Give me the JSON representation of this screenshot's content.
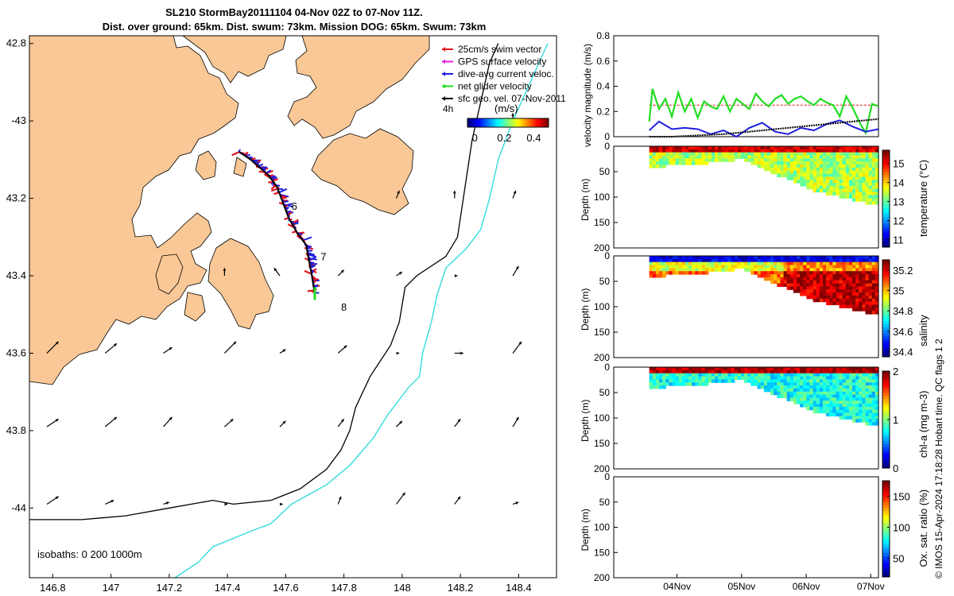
{
  "title": {
    "line1": "SL210 StormBay20111104 04-Nov 02Z to 07-Nov 11Z.",
    "line2": "Dist. over ground: 65km. Dist. swum: 73km. Mission DOG: 65km. Swum: 73km"
  },
  "credit": "© IMOS 15-Apr-2024 17:18:28 Hobart time. QC flags 1  2",
  "colors": {
    "land": "#F9C896",
    "swim_vector": "#E5141E",
    "gps_velocity": "#E020E0",
    "dive_avg": "#1F1FDD",
    "net_glider": "#22DD22",
    "sfc_geo": "#000000",
    "isobath_200": "#000000",
    "isobath_1000": "#33DDDD",
    "speed_ref": "#E03030"
  },
  "chart_data": [
    {
      "type": "map",
      "id": "map",
      "xlabel": "",
      "ylabel": "",
      "xlim": [
        146.72,
        148.53
      ],
      "ylim": [
        -44.18,
        -42.78
      ],
      "x_ticks": [
        146.8,
        147.0,
        147.2,
        147.4,
        147.6,
        147.8,
        148.0,
        148.2,
        148.4
      ],
      "x_tick_labels": [
        "146.8",
        "147",
        "147.2",
        "147.4",
        "147.6",
        "147.8",
        "148",
        "148.2",
        "148.4"
      ],
      "y_ticks": [
        -42.8,
        -43.0,
        -43.2,
        -43.4,
        -43.6,
        -43.8,
        -44.0
      ],
      "y_tick_labels": [
        "42.8",
        "-43",
        "43.2",
        "43.4",
        "43.6",
        "43.8",
        "-44"
      ],
      "legend": [
        {
          "label": "25cm/s swim vector",
          "color_key": "swim_vector"
        },
        {
          "label": "GPS surface velocity",
          "color_key": "gps_velocity"
        },
        {
          "label": "dive-avg current veloc.",
          "color_key": "dive_avg"
        },
        {
          "label": "net glider velocity",
          "color_key": "net_glider"
        },
        {
          "label": "sfc geo. vel. 07-Nov-2011",
          "color_key": "sfc_geo"
        }
      ],
      "speed_colorbar": {
        "label": "(m/s)",
        "ticks": [
          0,
          0.2,
          0.4
        ],
        "range": [
          -0.05,
          0.5
        ]
      },
      "time_marker_label": "4h",
      "day_labels": [
        {
          "text": "6",
          "lon": 147.62,
          "lat": -43.23
        },
        {
          "text": "7",
          "lon": 147.72,
          "lat": -43.36
        },
        {
          "text": "8",
          "lon": 147.79,
          "lat": -43.49
        }
      ],
      "isobath_label": "isobaths: 0   200  1000m",
      "glider_track": [
        [
          147.44,
          -43.08
        ],
        [
          147.48,
          -43.1
        ],
        [
          147.51,
          -43.12
        ],
        [
          147.54,
          -43.14
        ],
        [
          147.57,
          -43.17
        ],
        [
          147.59,
          -43.21
        ],
        [
          147.61,
          -43.25
        ],
        [
          147.64,
          -43.29
        ],
        [
          147.67,
          -43.32
        ],
        [
          147.68,
          -43.36
        ],
        [
          147.69,
          -43.4
        ],
        [
          147.7,
          -43.45
        ]
      ],
      "isobath_200": [
        [
          148.33,
          -42.8
        ],
        [
          148.3,
          -42.85
        ],
        [
          148.27,
          -42.95
        ],
        [
          148.24,
          -43.05
        ],
        [
          148.21,
          -43.2
        ],
        [
          148.19,
          -43.3
        ],
        [
          148.15,
          -43.35
        ],
        [
          148.05,
          -43.4
        ],
        [
          148.01,
          -43.43
        ],
        [
          147.99,
          -43.52
        ],
        [
          147.96,
          -43.58
        ],
        [
          147.89,
          -43.66
        ],
        [
          147.84,
          -43.74
        ],
        [
          147.82,
          -43.8
        ],
        [
          147.79,
          -43.85
        ],
        [
          147.74,
          -43.9
        ],
        [
          147.65,
          -43.95
        ],
        [
          147.55,
          -43.98
        ],
        [
          147.42,
          -43.99
        ],
        [
          147.35,
          -43.98
        ],
        [
          147.2,
          -44.0
        ],
        [
          147.05,
          -44.02
        ],
        [
          146.9,
          -44.03
        ],
        [
          146.72,
          -44.03
        ]
      ],
      "isobath_1000": [
        [
          148.5,
          -42.8
        ],
        [
          148.44,
          -42.9
        ],
        [
          148.38,
          -43.0
        ],
        [
          148.33,
          -43.1
        ],
        [
          148.3,
          -43.2
        ],
        [
          148.27,
          -43.28
        ],
        [
          148.22,
          -43.33
        ],
        [
          148.15,
          -43.38
        ],
        [
          148.12,
          -43.45
        ],
        [
          148.1,
          -43.52
        ],
        [
          148.07,
          -43.6
        ],
        [
          148.06,
          -43.66
        ],
        [
          148.02,
          -43.69
        ],
        [
          147.95,
          -43.76
        ],
        [
          147.9,
          -43.82
        ],
        [
          147.82,
          -43.89
        ],
        [
          147.74,
          -43.94
        ],
        [
          147.62,
          -43.99
        ],
        [
          147.55,
          -44.04
        ],
        [
          147.48,
          -44.06
        ],
        [
          147.35,
          -44.1
        ],
        [
          147.3,
          -44.14
        ],
        [
          147.22,
          -44.18
        ]
      ],
      "sfc_arrows": [
        [
          146.78,
          -43.6,
          0.04,
          0.03
        ],
        [
          146.98,
          -43.6,
          0.04,
          0.025
        ],
        [
          147.18,
          -43.6,
          0.03,
          0.015
        ],
        [
          147.39,
          -43.6,
          0.04,
          0.03
        ],
        [
          147.58,
          -43.6,
          0.02,
          0.01
        ],
        [
          147.78,
          -43.6,
          0.03,
          0.02
        ],
        [
          147.98,
          -43.6,
          0.01,
          0.0
        ],
        [
          148.18,
          -43.6,
          0.03,
          0.0
        ],
        [
          148.38,
          -43.6,
          0.03,
          0.03
        ],
        [
          146.78,
          -43.79,
          0.04,
          0.02
        ],
        [
          146.98,
          -43.79,
          0.04,
          0.025
        ],
        [
          147.18,
          -43.79,
          0.03,
          0.025
        ],
        [
          147.39,
          -43.79,
          0.03,
          0.02
        ],
        [
          147.58,
          -43.79,
          0.02,
          0.015
        ],
        [
          147.78,
          -43.79,
          0.02,
          0.02
        ],
        [
          147.98,
          -43.79,
          0.02,
          0.015
        ],
        [
          148.18,
          -43.79,
          0.02,
          0.02
        ],
        [
          148.38,
          -43.79,
          0.02,
          0.025
        ],
        [
          146.78,
          -43.99,
          0.04,
          0.02
        ],
        [
          146.98,
          -43.99,
          0.03,
          0.01
        ],
        [
          147.18,
          -43.99,
          0.02,
          0.005
        ],
        [
          147.39,
          -43.99,
          0.01,
          0.0
        ],
        [
          147.58,
          -43.99,
          0.01,
          0.0
        ],
        [
          147.78,
          -43.99,
          0.01,
          0.02
        ],
        [
          147.98,
          -43.99,
          0.03,
          0.03
        ],
        [
          148.18,
          -43.99,
          0.02,
          0.02
        ],
        [
          148.38,
          -43.99,
          0.02,
          0.005
        ],
        [
          147.39,
          -43.4,
          0.0,
          0.02
        ],
        [
          147.58,
          -43.4,
          -0.02,
          0.02
        ],
        [
          147.78,
          -43.4,
          0.02,
          0.015
        ],
        [
          147.98,
          -43.4,
          0.02,
          0.01
        ],
        [
          148.18,
          -43.4,
          0.01,
          0.0
        ],
        [
          148.38,
          -43.4,
          0.02,
          0.025
        ],
        [
          147.98,
          -43.2,
          0.01,
          0.02
        ],
        [
          148.18,
          -43.2,
          0.0,
          0.02
        ],
        [
          148.38,
          -43.2,
          0.01,
          0.02
        ],
        [
          148.38,
          -43.0,
          0.0,
          0.02
        ]
      ]
    },
    {
      "type": "line",
      "id": "velocity",
      "ylabel": "velocity magnitude (m/s)",
      "xlim": [
        0,
        4.1
      ],
      "ylim": [
        0,
        0.8
      ],
      "y_ticks": [
        0,
        0.2,
        0.4,
        0.6,
        0.8
      ],
      "y_tick_labels": [
        "0",
        "0.2",
        "0.4",
        "0.6",
        "0.8"
      ],
      "series": [
        {
          "name": "25cm/s swim vector",
          "color_key": "speed_ref",
          "x": [
            0.55,
            4.1
          ],
          "values": [
            0.25,
            0.25
          ]
        },
        {
          "name": "net glider velocity",
          "color_key": "net_glider",
          "x": [
            0.55,
            0.6,
            0.7,
            0.8,
            0.9,
            1.0,
            1.1,
            1.2,
            1.3,
            1.4,
            1.5,
            1.6,
            1.7,
            1.8,
            1.9,
            2.0,
            2.1,
            2.2,
            2.3,
            2.4,
            2.5,
            2.6,
            2.7,
            2.8,
            2.9,
            3.0,
            3.1,
            3.2,
            3.3,
            3.4,
            3.5,
            3.6,
            3.7,
            3.8,
            3.9,
            4.0,
            4.1
          ],
          "values": [
            0.12,
            0.38,
            0.22,
            0.3,
            0.16,
            0.35,
            0.2,
            0.3,
            0.15,
            0.28,
            0.24,
            0.22,
            0.32,
            0.2,
            0.3,
            0.26,
            0.22,
            0.34,
            0.28,
            0.24,
            0.3,
            0.33,
            0.26,
            0.3,
            0.32,
            0.28,
            0.25,
            0.3,
            0.27,
            0.25,
            0.16,
            0.32,
            0.23,
            0.12,
            0.03,
            0.26,
            0.24
          ]
        },
        {
          "name": "dive-avg current veloc.",
          "color_key": "dive_avg",
          "x": [
            0.55,
            0.7,
            0.9,
            1.1,
            1.3,
            1.5,
            1.7,
            1.9,
            2.1,
            2.3,
            2.5,
            2.7,
            2.9,
            3.1,
            3.3,
            3.5,
            3.7,
            3.9,
            4.1
          ],
          "values": [
            0.05,
            0.12,
            0.06,
            0.07,
            0.06,
            0.02,
            0.05,
            0.0,
            0.07,
            0.11,
            0.04,
            0.02,
            0.07,
            0.05,
            0.1,
            0.13,
            0.08,
            0.04,
            0.06
          ]
        },
        {
          "name": "sfc geo. vel.",
          "color_key": "sfc_geo",
          "x": [
            0.55,
            0.9,
            1.3,
            1.7,
            2.1,
            2.5,
            2.9,
            3.3,
            3.7,
            4.1
          ],
          "values": [
            0.0,
            0.0,
            0.01,
            0.02,
            0.04,
            0.06,
            0.08,
            0.1,
            0.12,
            0.14
          ]
        }
      ]
    },
    {
      "type": "heatmap",
      "id": "temperature",
      "xlabel": "",
      "ylabel": "Depth (m)",
      "variable": "temperature (°C)",
      "ylim": [
        0,
        200
      ],
      "y_ticks": [
        0,
        50,
        100,
        150,
        200
      ],
      "clim": [
        10.6,
        15.7
      ],
      "colorbar_ticks": [
        11,
        12,
        13,
        14,
        15
      ],
      "dominant": 13.4,
      "surface": 15.3
    },
    {
      "type": "heatmap",
      "id": "salinity",
      "ylabel": "Depth (m)",
      "variable": "salinity",
      "ylim": [
        0,
        200
      ],
      "y_ticks": [
        0,
        50,
        100,
        150,
        200
      ],
      "clim": [
        34.35,
        35.3
      ],
      "colorbar_ticks": [
        34.4,
        34.6,
        34.8,
        35,
        35.2
      ],
      "dominant": 35.1,
      "surface": 34.45
    },
    {
      "type": "heatmap",
      "id": "chla",
      "ylabel": "Depth (m)",
      "variable": "chl-a (mg m-3)",
      "ylim": [
        0,
        200
      ],
      "y_ticks": [
        0,
        50,
        100,
        150,
        200
      ],
      "clim": [
        0,
        2
      ],
      "colorbar_ticks": [
        0,
        1,
        2
      ],
      "dominant": 0.8,
      "surface": 1.9
    },
    {
      "type": "heatmap",
      "id": "oxygen",
      "ylabel": "Depth (m)",
      "variable": "Ox. sat. ratio (%)",
      "ylim": [
        0,
        200
      ],
      "y_ticks": [
        0,
        50,
        100,
        150,
        200
      ],
      "clim": [
        20,
        175
      ],
      "colorbar_ticks": [
        50,
        100,
        150
      ],
      "x_ticks": [
        1,
        2,
        3,
        4
      ],
      "x_tick_labels": [
        "04Nov",
        "05Nov",
        "06Nov",
        "07Nov"
      ]
    }
  ]
}
